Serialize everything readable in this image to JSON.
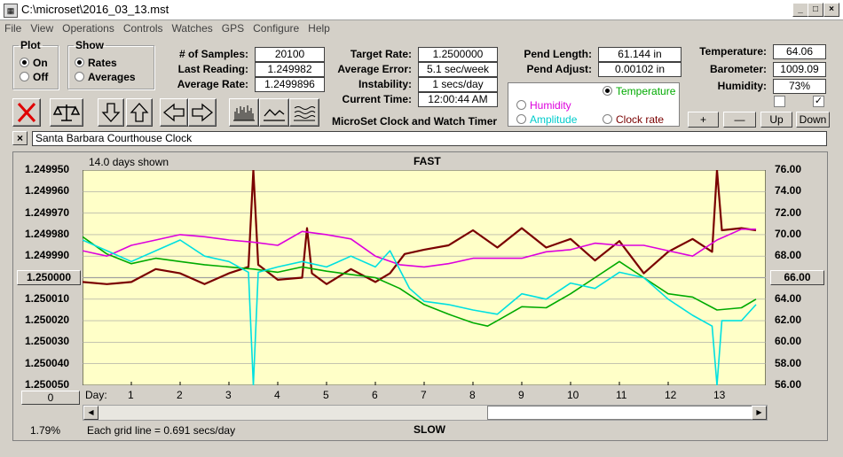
{
  "window": {
    "title": "C:\\microset\\2016_03_13.mst"
  },
  "menu": [
    "File",
    "View",
    "Operations",
    "Controls",
    "Watches",
    "GPS",
    "Configure",
    "Help"
  ],
  "plot": {
    "legend": "Plot",
    "on": "On",
    "off": "Off",
    "selected": "On"
  },
  "show": {
    "legend": "Show",
    "rates": "Rates",
    "averages": "Averages",
    "selected": "Rates"
  },
  "stats": {
    "samples_label": "# of Samples:",
    "samples": "20100",
    "last_label": "Last Reading:",
    "last": "1.249982",
    "avg_label": "Average Rate:",
    "avg": "1.2499896",
    "target_label": "Target Rate:",
    "target": "1.2500000",
    "avgerr_label": "Average Error:",
    "avgerr": "5.1 sec/week",
    "instab_label": "Instability:",
    "instab": "1 secs/day",
    "time_label": "Current Time:",
    "time": "12:00:44 AM",
    "pendlen_label": "Pend Length:",
    "pendlen": "61.144 in",
    "pendadj_label": "Pend Adjust:",
    "pendadj": "0.00102 in",
    "temp_label": "Temperature:",
    "temp": "64.06",
    "baro_label": "Barometer:",
    "baro": "1009.09",
    "hum_label": "Humidity:",
    "hum": "73%"
  },
  "app_name": "MicroSet Clock and Watch Timer",
  "modes": {
    "temperature": "Temperature",
    "humidity": "Humidity",
    "amplitude": "Amplitude",
    "clockrate": "Clock rate",
    "selected": "Temperature"
  },
  "buttons": {
    "plus": "+",
    "minus": "—",
    "up": "Up",
    "down": "Down"
  },
  "clock_name": "Santa Barbara Courthouse Clock",
  "graph": {
    "days_shown": "14.0 days shown",
    "fast": "FAST",
    "slow": "SLOW",
    "day_label": "Day:",
    "left_center": "1.250000",
    "right_center": "66.00",
    "zero_btn": "0",
    "grid_note": "Each grid line = 0.691 secs/day",
    "percent": "1.79%"
  },
  "colors": {
    "plot_bg": "#ffffc8",
    "rate": "#7a0000",
    "temperature": "#00aa00",
    "humidity": "#dd00dd",
    "amplitude": "#00e0e0",
    "grid": "#a0a0a0"
  },
  "chart_data": {
    "type": "line",
    "x_label": "Day:",
    "xlim": [
      0,
      14
    ],
    "x_ticks": [
      "1",
      "2",
      "3",
      "4",
      "5",
      "6",
      "7",
      "8",
      "9",
      "10",
      "11",
      "12",
      "13"
    ],
    "left_ticks": [
      "1.249950",
      "1.249960",
      "1.249970",
      "1.249980",
      "1.249990",
      "1.250000",
      "1.250010",
      "1.250020",
      "1.250030",
      "1.250040",
      "1.250050"
    ],
    "right_ticks": [
      "76.00",
      "74.00",
      "72.00",
      "70.00",
      "68.00",
      "66.00",
      "64.00",
      "62.00",
      "60.00",
      "58.00",
      "56.00"
    ],
    "ylim_left": [
      1.25005,
      1.24995
    ],
    "ylim_right": [
      56,
      76
    ],
    "series": [
      {
        "name": "Clock rate",
        "key": "rate",
        "x": [
          0,
          0.5,
          1,
          1.5,
          2,
          2.5,
          3,
          3.4,
          3.5,
          3.6,
          4,
          4.5,
          4.6,
          4.7,
          5,
          5.5,
          6,
          6.3,
          6.6,
          7,
          7.5,
          8,
          8.5,
          9,
          9.5,
          10,
          10.5,
          11,
          11.5,
          12,
          12.5,
          12.9,
          13,
          13.1,
          13.5,
          13.8
        ],
        "y": [
          1.250002,
          1.250003,
          1.250002,
          1.249996,
          1.249998,
          1.250003,
          1.249998,
          1.249995,
          1.24995,
          1.249994,
          1.250001,
          1.25,
          1.249977,
          1.249998,
          1.250003,
          1.249996,
          1.250002,
          1.249998,
          1.249989,
          1.249987,
          1.249985,
          1.249978,
          1.249986,
          1.249977,
          1.249986,
          1.249982,
          1.249992,
          1.249983,
          1.249998,
          1.249988,
          1.249982,
          1.249988,
          1.24995,
          1.249978,
          1.249977,
          1.249978
        ]
      },
      {
        "name": "Temperature",
        "key": "temperature",
        "x": [
          0,
          0.5,
          1,
          1.5,
          2,
          2.5,
          3,
          3.5,
          4,
          4.5,
          5,
          5.5,
          6,
          6.5,
          7,
          7.5,
          8,
          8.3,
          8.5,
          9,
          9.5,
          10,
          10.5,
          11,
          11.5,
          12,
          12.5,
          13,
          13.5,
          13.8
        ],
        "y": [
          69.8,
          68.2,
          67.3,
          67.8,
          67.5,
          67.2,
          67.0,
          66.8,
          66.5,
          67.0,
          66.6,
          66.3,
          66.0,
          65.0,
          63.5,
          62.6,
          61.8,
          61.5,
          62.0,
          63.3,
          63.2,
          64.5,
          66.0,
          67.5,
          66.0,
          64.5,
          64.2,
          63.0,
          63.2,
          64.0
        ]
      },
      {
        "name": "Humidity",
        "key": "humidity",
        "x": [
          0,
          0.5,
          1,
          1.5,
          2,
          2.5,
          3,
          3.5,
          4,
          4.5,
          5,
          5.5,
          6,
          6.5,
          7,
          7.5,
          8,
          8.5,
          9,
          9.5,
          10,
          10.5,
          11,
          11.5,
          12,
          12.5,
          13,
          13.5,
          13.8
        ],
        "y": [
          68.5,
          68.0,
          69.0,
          69.5,
          70.0,
          69.8,
          69.5,
          69.3,
          69.0,
          70.3,
          70.0,
          69.6,
          68.0,
          67.2,
          67.0,
          67.3,
          67.8,
          67.8,
          67.8,
          68.4,
          68.6,
          69.2,
          69.0,
          69.0,
          68.5,
          68.0,
          69.5,
          70.5,
          70.5
        ]
      },
      {
        "name": "Amplitude",
        "key": "amplitude",
        "x": [
          0,
          0.5,
          1,
          1.5,
          2,
          2.5,
          3,
          3.4,
          3.5,
          3.6,
          4,
          4.5,
          5,
          5.5,
          6,
          6.3,
          6.7,
          7,
          7.5,
          8,
          8.5,
          9,
          9.5,
          10,
          10.5,
          11,
          11.5,
          12,
          12.5,
          12.9,
          13,
          13.1,
          13.5,
          13.8
        ],
        "y": [
          69.5,
          68.5,
          67.5,
          68.5,
          69.5,
          68.0,
          67.5,
          66.5,
          56.0,
          66.5,
          67.0,
          67.5,
          67.0,
          68.0,
          67.0,
          68.5,
          65.0,
          63.8,
          63.5,
          63.0,
          62.6,
          64.5,
          64.0,
          65.5,
          65.0,
          66.5,
          66.0,
          64.0,
          62.5,
          61.5,
          56.0,
          62.0,
          62.0,
          63.5
        ]
      }
    ]
  }
}
